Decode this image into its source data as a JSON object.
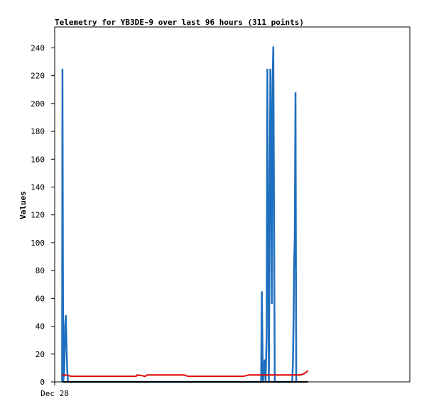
{
  "chart_data": {
    "type": "line",
    "title": "Telemetry for YB3DE-9 over last 96 hours (311 points)",
    "xlabel": "",
    "ylabel": "Values",
    "x_tick_labels": [
      "Dec 28"
    ],
    "x_range_hours": [
      0,
      96
    ],
    "ylim": [
      0,
      255
    ],
    "y_ticks": [
      0,
      20,
      40,
      60,
      80,
      100,
      120,
      140,
      160,
      180,
      200,
      220,
      240
    ],
    "grid": false,
    "series": [
      {
        "color": "#1f6fbf",
        "points": [
          [
            2.0,
            0
          ],
          [
            2.1,
            225
          ],
          [
            2.3,
            0
          ],
          [
            2.6,
            8
          ],
          [
            2.8,
            40
          ],
          [
            3.0,
            48
          ],
          [
            3.2,
            25
          ],
          [
            3.4,
            8
          ],
          [
            3.6,
            0
          ],
          [
            55.8,
            0
          ],
          [
            56.0,
            65
          ],
          [
            56.3,
            0
          ],
          [
            56.8,
            16
          ],
          [
            57.0,
            0
          ],
          [
            57.3,
            32
          ],
          [
            57.5,
            225
          ],
          [
            57.7,
            112
          ],
          [
            57.9,
            0
          ],
          [
            58.1,
            112
          ],
          [
            58.3,
            225
          ],
          [
            58.5,
            168
          ],
          [
            58.7,
            56
          ],
          [
            58.9,
            216
          ],
          [
            59.1,
            241
          ],
          [
            59.3,
            120
          ],
          [
            59.5,
            0
          ],
          [
            64.2,
            0
          ],
          [
            64.4,
            13
          ],
          [
            64.6,
            48
          ],
          [
            64.7,
            80
          ],
          [
            64.9,
            104
          ],
          [
            65.1,
            208
          ],
          [
            65.3,
            0
          ]
        ]
      },
      {
        "color": "#dd0000",
        "points": [
          [
            2.0,
            5
          ],
          [
            3.0,
            5
          ],
          [
            4.5,
            4
          ],
          [
            22.0,
            4
          ],
          [
            22.3,
            5
          ],
          [
            23.5,
            4.5
          ],
          [
            24.5,
            4
          ],
          [
            25.0,
            5
          ],
          [
            31.0,
            5
          ],
          [
            35.0,
            5
          ],
          [
            36.0,
            4
          ],
          [
            51.0,
            4
          ],
          [
            52.5,
            5
          ],
          [
            66.5,
            5
          ],
          [
            67.5,
            6
          ],
          [
            68.5,
            8
          ]
        ]
      },
      {
        "color": "#000000",
        "points": [
          [
            2.0,
            0
          ],
          [
            68.5,
            0
          ]
        ]
      }
    ]
  }
}
